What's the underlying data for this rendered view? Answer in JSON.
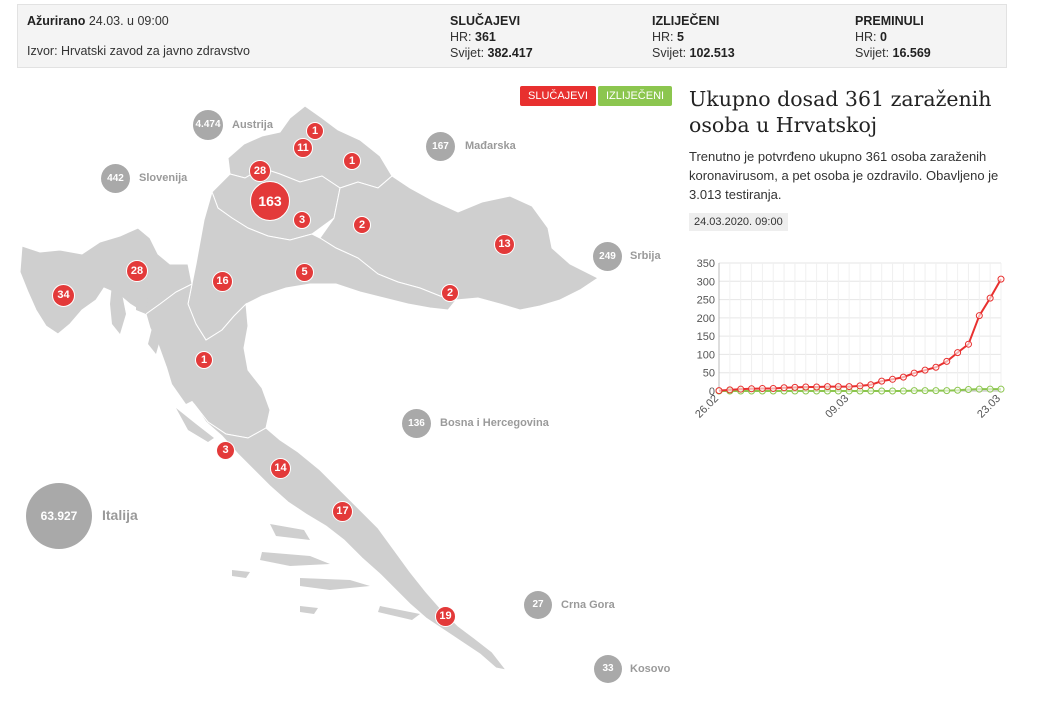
{
  "header": {
    "updated_label": "Ažurirano",
    "updated_value": "24.03. u 09:00",
    "source": "Izvor: Hrvatski zavod za javno zdravstvo",
    "cases": {
      "title": "SLUČAJEVI",
      "hr_label": "HR:",
      "hr_value": "361",
      "world_label": "Svijet:",
      "world_value": "382.417"
    },
    "recovered": {
      "title": "IZLIJEČENI",
      "hr_label": "HR:",
      "hr_value": "5",
      "world_label": "Svijet:",
      "world_value": "102.513"
    },
    "deaths": {
      "title": "PREMINULI",
      "hr_label": "HR:",
      "hr_value": "0",
      "world_label": "Svijet:",
      "world_value": "16.569"
    }
  },
  "map": {
    "toggle_cases": "SLUČAJEVI",
    "toggle_recovered": "IZLIJEČENI",
    "colors": {
      "cases": "#e8302f",
      "recovered": "#8cc64f",
      "neighbour": "#a9a9a9",
      "land": "#cfcfcf"
    },
    "regions": [
      {
        "id": "varazdin-north",
        "count": "1"
      },
      {
        "id": "varazdin",
        "count": "11"
      },
      {
        "id": "koprivnica",
        "count": "1"
      },
      {
        "id": "krapina",
        "count": "28"
      },
      {
        "id": "zagreb",
        "count": "163"
      },
      {
        "id": "zagreb-county",
        "count": "3"
      },
      {
        "id": "bjelovar",
        "count": "2"
      },
      {
        "id": "osijek",
        "count": "13"
      },
      {
        "id": "istra",
        "count": "34"
      },
      {
        "id": "rijeka",
        "count": "28"
      },
      {
        "id": "karlovac",
        "count": "16"
      },
      {
        "id": "sisak",
        "count": "5"
      },
      {
        "id": "brod",
        "count": "2"
      },
      {
        "id": "lika",
        "count": "1"
      },
      {
        "id": "sibenik",
        "count": "3"
      },
      {
        "id": "split",
        "count": "14"
      },
      {
        "id": "makarska",
        "count": "17"
      },
      {
        "id": "dubrovnik",
        "count": "19"
      }
    ],
    "neighbours": [
      {
        "name": "Austrija",
        "count": "4.474"
      },
      {
        "name": "Mađarska",
        "count": "167"
      },
      {
        "name": "Slovenija",
        "count": "442"
      },
      {
        "name": "Srbija",
        "count": "249"
      },
      {
        "name": "Bosna i Hercegovina",
        "count": "136"
      },
      {
        "name": "Italija",
        "count": "63.927"
      },
      {
        "name": "Crna Gora",
        "count": "27"
      },
      {
        "name": "Kosovo",
        "count": "33"
      }
    ]
  },
  "panel": {
    "title": "Ukupno dosad 361 zaraženih osoba u Hrvatskoj",
    "text": "Trenutno je potvrđeno ukupno 361 osoba zaraženih koronavirusom, a pet osoba je ozdravilo. Obavljeno je 3.013 testiranja.",
    "timestamp": "24.03.2020. 09:00"
  },
  "chart_data": {
    "type": "line",
    "x": [
      "26.02",
      "27.02",
      "28.02",
      "29.02",
      "01.03",
      "02.03",
      "03.03",
      "04.03",
      "05.03",
      "06.03",
      "07.03",
      "08.03",
      "09.03",
      "10.03",
      "11.03",
      "12.03",
      "13.03",
      "14.03",
      "15.03",
      "16.03",
      "17.03",
      "18.03",
      "19.03",
      "20.03",
      "21.03",
      "22.03",
      "23.03"
    ],
    "x_tick_labels": [
      "26.02",
      "09.03",
      "23.03"
    ],
    "ylim": [
      0,
      350
    ],
    "y_ticks": [
      0,
      50,
      100,
      150,
      200,
      250,
      300,
      350
    ],
    "grid": true,
    "series": [
      {
        "color": "#e8302f",
        "values": [
          1,
          3,
          5,
          6,
          7,
          7,
          9,
          10,
          11,
          11,
          12,
          12,
          12,
          14,
          17,
          27,
          32,
          38,
          49,
          57,
          65,
          81,
          105,
          128,
          206,
          254,
          306
        ]
      },
      {
        "color": "#8cc64f",
        "values": [
          0,
          0,
          0,
          0,
          0,
          0,
          0,
          0,
          0,
          0,
          0,
          0,
          0,
          0,
          0,
          0,
          0,
          0,
          1,
          1,
          1,
          1,
          2,
          4,
          5,
          5,
          5
        ]
      }
    ]
  }
}
